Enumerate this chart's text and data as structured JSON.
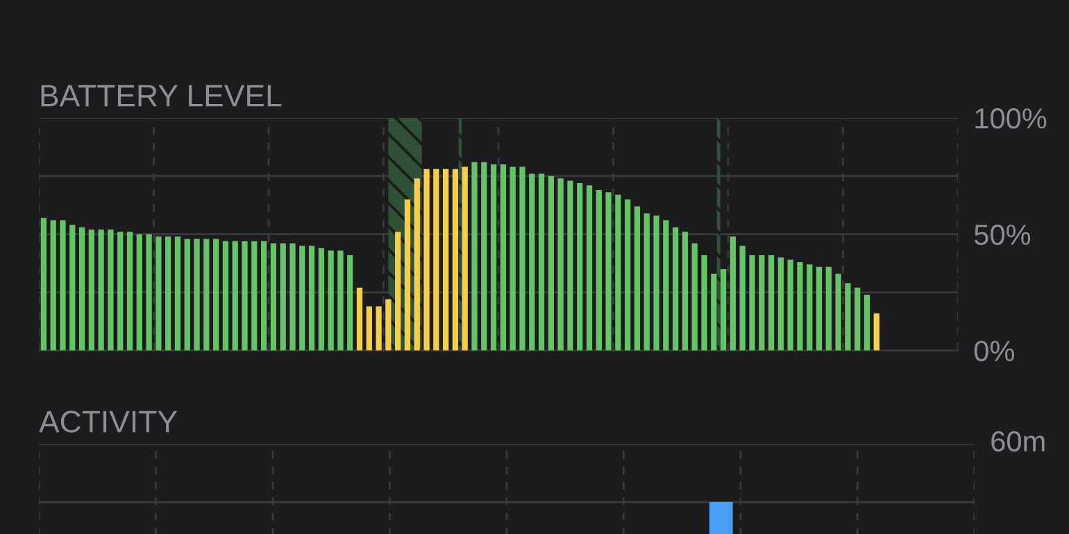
{
  "chart_data": [
    {
      "type": "bar",
      "title": "BATTERY LEVEL",
      "categories": [
        null,
        null,
        null,
        null,
        null,
        null,
        null,
        null,
        null,
        null,
        null,
        null,
        null,
        null,
        null,
        null,
        null,
        null,
        null,
        null,
        null,
        null,
        null,
        null,
        null,
        null,
        null,
        null,
        null,
        null,
        null,
        null,
        null,
        null,
        null,
        null,
        null,
        null,
        null,
        null,
        null,
        null,
        null,
        null,
        null,
        null,
        null,
        null,
        null,
        null,
        null,
        null,
        null,
        null,
        null,
        null,
        null,
        null,
        null,
        null,
        null,
        null,
        null,
        null,
        null,
        null,
        null,
        null,
        null,
        null,
        null,
        null,
        null,
        null,
        null,
        null,
        null,
        null,
        null,
        null,
        null,
        null,
        null,
        null,
        null,
        null,
        null,
        null
      ],
      "values": [
        57,
        56,
        56,
        54,
        53,
        52,
        52,
        52,
        51,
        51,
        50,
        50,
        49,
        49,
        49,
        48,
        48,
        48,
        48,
        47,
        47,
        47,
        47,
        47,
        46,
        46,
        46,
        45,
        45,
        44,
        43,
        43,
        41,
        27,
        19,
        19,
        22,
        51,
        65,
        74,
        78,
        78,
        78,
        78,
        79,
        81,
        81,
        80,
        80,
        79,
        79,
        76,
        76,
        75,
        74,
        73,
        72,
        71,
        69,
        68,
        67,
        65,
        62,
        59,
        58,
        56,
        53,
        51,
        46,
        41,
        33,
        35,
        49,
        45,
        41,
        41,
        41,
        40,
        39,
        38,
        37,
        36,
        36,
        33,
        29,
        27,
        24,
        16
      ],
      "colors": [
        "#65c466",
        "#65c466",
        "#65c466",
        "#65c466",
        "#65c466",
        "#65c466",
        "#65c466",
        "#65c466",
        "#65c466",
        "#65c466",
        "#65c466",
        "#65c466",
        "#65c466",
        "#65c466",
        "#65c466",
        "#65c466",
        "#65c466",
        "#65c466",
        "#65c466",
        "#65c466",
        "#65c466",
        "#65c466",
        "#65c466",
        "#65c466",
        "#65c466",
        "#65c466",
        "#65c466",
        "#65c466",
        "#65c466",
        "#65c466",
        "#65c466",
        "#65c466",
        "#65c466",
        "#f5cf4a",
        "#f5cf4a",
        "#f5cf4a",
        "#f5cf4a",
        "#f5cf4a",
        "#f5cf4a",
        "#f5cf4a",
        "#f5cf4a",
        "#f5cf4a",
        "#f5cf4a",
        "#f5cf4a",
        "#f5cf4a",
        "#65c466",
        "#65c466",
        "#65c466",
        "#65c466",
        "#65c466",
        "#65c466",
        "#65c466",
        "#65c466",
        "#65c466",
        "#65c466",
        "#65c466",
        "#65c466",
        "#65c466",
        "#65c466",
        "#65c466",
        "#65c466",
        "#65c466",
        "#65c466",
        "#65c466",
        "#65c466",
        "#65c466",
        "#65c466",
        "#65c466",
        "#65c466",
        "#65c466",
        "#65c466",
        "#65c466",
        "#65c466",
        "#65c466",
        "#65c466",
        "#65c466",
        "#65c466",
        "#65c466",
        "#65c466",
        "#65c466",
        "#65c466",
        "#65c466",
        "#65c466",
        "#65c466",
        "#65c466",
        "#65c466",
        "#65c466",
        "#f5cf4a"
      ],
      "ylim": [
        0,
        100
      ],
      "yticks": [
        {
          "value": 0,
          "label": "0%"
        },
        {
          "value": 25,
          "label": null
        },
        {
          "value": 50,
          "label": "50%"
        },
        {
          "value": 75,
          "label": null
        },
        {
          "value": 100,
          "label": "100%"
        }
      ],
      "grid": true,
      "tick_labels": "y"
    },
    {
      "type": "other",
      "title": "ACTIVITY",
      "annotations": [
        "60m"
      ]
    }
  ]
}
